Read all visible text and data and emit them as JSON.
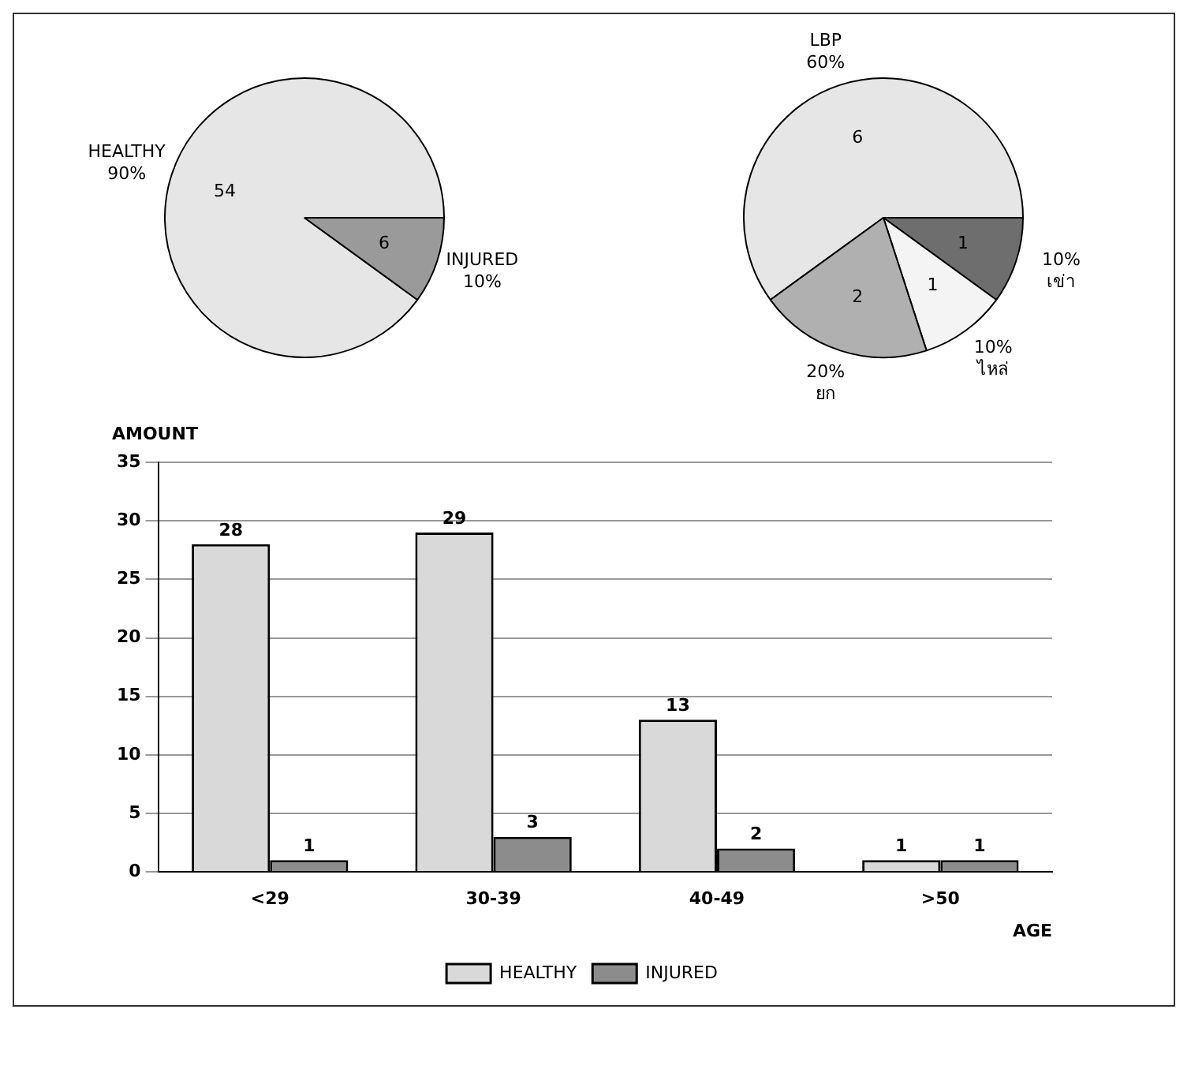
{
  "chart_data": [
    {
      "type": "pie",
      "categories": [
        "HEALTHY\n90%",
        "INJURED\n10%"
      ],
      "values": [
        54,
        6
      ],
      "colors": [
        "#e6e6e6",
        "#9a9a9a"
      ],
      "data_labels": true
    },
    {
      "type": "pie",
      "categories": [
        "LBP\n60%",
        "10%\nเข่า",
        "10%\nไหล่",
        "20%\nยก"
      ],
      "values": [
        6,
        1,
        1,
        2
      ],
      "colors": [
        "#e6e6e6",
        "#6e6e6e",
        "#f4f4f4",
        "#b0b0b0"
      ],
      "data_labels": true
    },
    {
      "type": "bar",
      "xlabel": "AGE",
      "ylabel": "AMOUNT",
      "categories": [
        "<29",
        "30-39",
        "40-49",
        ">50"
      ],
      "series": [
        {
          "name": "HEALTHY",
          "color": "#d9d9d9",
          "values": [
            28,
            29,
            13,
            1
          ]
        },
        {
          "name": "INJURED",
          "color": "#8c8c8c",
          "values": [
            1,
            3,
            2,
            1
          ]
        }
      ],
      "ylim": [
        0,
        35
      ],
      "yticks": [
        0,
        5,
        10,
        15,
        20,
        25,
        30,
        35
      ],
      "grid": "y",
      "legend": "bottom",
      "data_labels": true
    }
  ]
}
